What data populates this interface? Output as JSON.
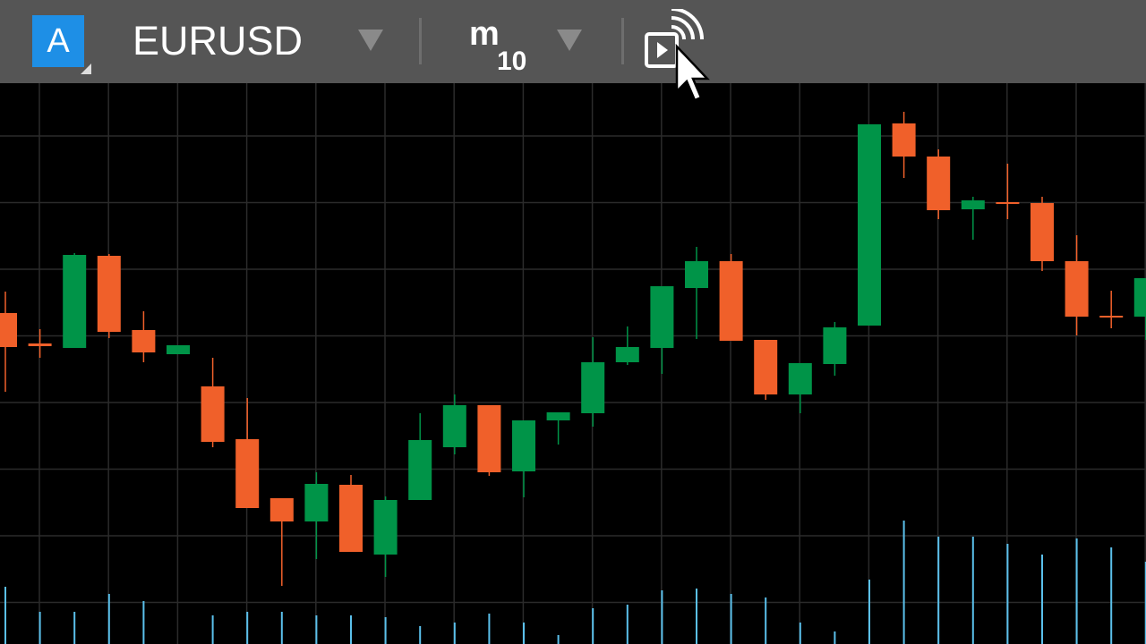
{
  "toolbar": {
    "account": "A",
    "symbol": "EURUSD",
    "timeframe_unit": "m",
    "timeframe_value": "10"
  },
  "chart_data": {
    "type": "candlestick",
    "categories": [
      null,
      null,
      null,
      null,
      null,
      null,
      null,
      null,
      null,
      null,
      null,
      null,
      null,
      null,
      null,
      null,
      null,
      null,
      null,
      null,
      null,
      null,
      null,
      null,
      null,
      null,
      null,
      null,
      null,
      null,
      null,
      null,
      null,
      null
    ],
    "open": [
      370,
      336,
      331,
      434,
      351,
      324,
      288,
      229,
      163,
      137,
      178,
      100,
      161,
      220,
      267,
      193,
      250,
      258,
      315,
      331,
      398,
      428,
      340,
      279,
      313,
      356,
      582,
      545,
      486,
      494,
      493,
      428,
      367,
      366
    ],
    "high": [
      394,
      352,
      437,
      436,
      372,
      334,
      320,
      275,
      163,
      192,
      189,
      165,
      258,
      279,
      267,
      250,
      259,
      343,
      355,
      400,
      444,
      436,
      340,
      314,
      360,
      581,
      595,
      553,
      500,
      537,
      500,
      457,
      395,
      409
    ],
    "low": [
      282,
      320,
      331,
      342,
      315,
      324,
      220,
      152,
      65,
      95,
      103,
      75,
      161,
      212,
      188,
      164,
      223,
      243,
      312,
      302,
      341,
      339,
      273,
      258,
      300,
      356,
      521,
      475,
      452,
      475,
      417,
      345,
      353,
      340
    ],
    "close": [
      332,
      333,
      435,
      349,
      326,
      334,
      226,
      152,
      137,
      179,
      103,
      161,
      228,
      267,
      192,
      250,
      259,
      315,
      332,
      400,
      428,
      339,
      279,
      314,
      354,
      581,
      545,
      485,
      496,
      492,
      428,
      366,
      365,
      409
    ],
    "up_color": "#009448",
    "down_color": "#f0602a",
    "ylim": [
      0,
      627
    ],
    "volume": {
      "values": [
        64,
        36,
        36,
        56,
        48,
        0,
        32,
        36,
        36,
        32,
        32,
        30,
        20,
        24,
        34,
        24,
        10,
        40,
        44,
        60,
        62,
        56,
        52,
        24,
        14,
        72,
        138,
        120,
        120,
        112,
        100,
        118,
        108,
        92
      ],
      "color": "#5bc0eb"
    },
    "grid": true
  }
}
